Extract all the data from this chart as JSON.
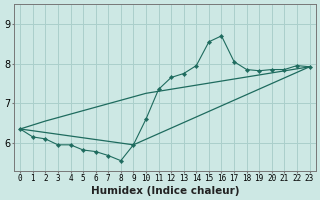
{
  "bg_color": "#cde8e4",
  "grid_color": "#aacfcb",
  "line_color": "#1e6b5e",
  "marker_color": "#1e6b5e",
  "xlabel": "Humidex (Indice chaleur)",
  "xlabel_fontsize": 7.5,
  "ytick_fontsize": 7,
  "xtick_fontsize": 5.5,
  "xlim": [
    -0.5,
    23.5
  ],
  "ylim": [
    5.3,
    9.5
  ],
  "yticks": [
    6,
    7,
    8,
    9
  ],
  "xtick_labels": [
    "0",
    "1",
    "2",
    "3",
    "4",
    "5",
    "6",
    "7",
    "8",
    "9",
    "10",
    "11",
    "12",
    "13",
    "14",
    "15",
    "16",
    "17",
    "18",
    "19",
    "20",
    "21",
    "22",
    "23"
  ],
  "series1_x": [
    0,
    1,
    2,
    3,
    4,
    5,
    6,
    7,
    8,
    9,
    10,
    11,
    12,
    13,
    14,
    15,
    16,
    17,
    18,
    19,
    20,
    21,
    22,
    23
  ],
  "series1_y": [
    6.35,
    6.15,
    6.1,
    5.95,
    5.95,
    5.82,
    5.78,
    5.68,
    5.55,
    5.95,
    6.6,
    7.35,
    7.65,
    7.75,
    7.95,
    8.55,
    8.7,
    8.05,
    7.85,
    7.82,
    7.85,
    7.85,
    7.95,
    7.92
  ],
  "series2_x": [
    0,
    2,
    10,
    23
  ],
  "series2_y": [
    6.35,
    6.55,
    7.25,
    7.92
  ],
  "series3_x": [
    0,
    9,
    23
  ],
  "series3_y": [
    6.35,
    5.95,
    7.92
  ]
}
